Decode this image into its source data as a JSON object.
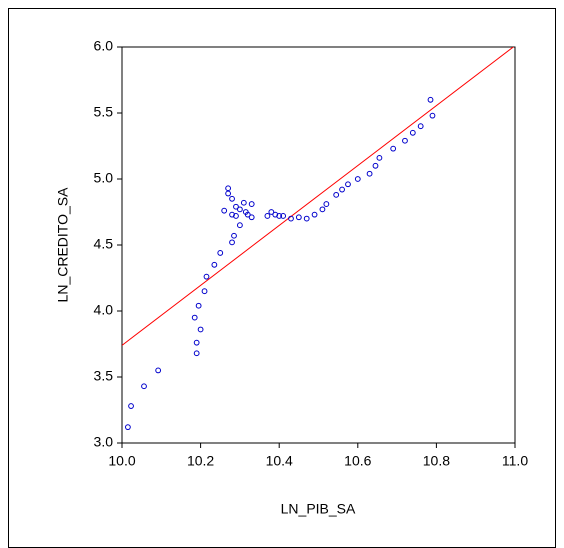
{
  "chart_data": {
    "type": "scatter",
    "x_label": "LN_PIB_SA",
    "y_label": "LN_CREDITO_SA",
    "xlim": [
      10.0,
      11.0
    ],
    "ylim": [
      3.0,
      6.0
    ],
    "xticks": [
      {
        "value": 10.0,
        "label": "10.0"
      },
      {
        "value": 10.2,
        "label": "10.2"
      },
      {
        "value": 10.4,
        "label": "10.4"
      },
      {
        "value": 10.6,
        "label": "10.6"
      },
      {
        "value": 10.8,
        "label": "10.8"
      },
      {
        "value": 11.0,
        "label": "11.0"
      }
    ],
    "yticks": [
      {
        "value": 3.0,
        "label": "3.0"
      },
      {
        "value": 3.5,
        "label": "3.5"
      },
      {
        "value": 4.0,
        "label": "4.0"
      },
      {
        "value": 4.5,
        "label": "4.5"
      },
      {
        "value": 5.0,
        "label": "5.0"
      },
      {
        "value": 5.5,
        "label": "5.5"
      },
      {
        "value": 6.0,
        "label": "6.0"
      }
    ],
    "color": "#0000cc",
    "x": [
      10.015,
      10.023,
      10.056,
      10.092,
      10.185,
      10.19,
      10.19,
      10.195,
      10.2,
      10.21,
      10.215,
      10.235,
      10.25,
      10.26,
      10.27,
      10.27,
      10.28,
      10.28,
      10.285,
      10.28,
      10.29,
      10.29,
      10.3,
      10.3,
      10.31,
      10.315,
      10.32,
      10.33,
      10.33,
      10.37,
      10.38,
      10.39,
      10.4,
      10.41,
      10.43,
      10.45,
      10.47,
      10.49,
      10.51,
      10.52,
      10.545,
      10.56,
      10.575,
      10.6,
      10.63,
      10.645,
      10.655,
      10.69,
      10.72,
      10.74,
      10.76,
      10.79,
      10.785
    ],
    "y": [
      3.12,
      3.28,
      3.43,
      3.55,
      3.95,
      3.76,
      3.68,
      4.04,
      3.86,
      4.15,
      4.26,
      4.35,
      4.44,
      4.76,
      4.93,
      4.89,
      4.73,
      4.85,
      4.57,
      4.52,
      4.79,
      4.72,
      4.77,
      4.65,
      4.82,
      4.75,
      4.73,
      4.81,
      4.71,
      4.72,
      4.75,
      4.73,
      4.72,
      4.72,
      4.7,
      4.71,
      4.7,
      4.73,
      4.77,
      4.81,
      4.88,
      4.92,
      4.96,
      5.0,
      5.04,
      5.1,
      5.16,
      5.23,
      5.29,
      5.35,
      5.4,
      5.48,
      5.6
    ],
    "fit_line": {
      "color": "#ff0000",
      "x": [
        10.0,
        11.0
      ],
      "y": [
        3.74,
        6.01
      ]
    }
  }
}
